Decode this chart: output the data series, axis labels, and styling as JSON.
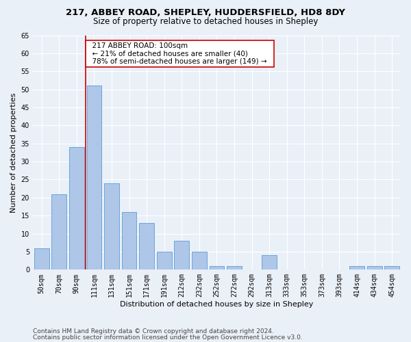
{
  "title1": "217, ABBEY ROAD, SHEPLEY, HUDDERSFIELD, HD8 8DY",
  "title2": "Size of property relative to detached houses in Shepley",
  "xlabel": "Distribution of detached houses by size in Shepley",
  "ylabel": "Number of detached properties",
  "categories": [
    "50sqm",
    "70sqm",
    "90sqm",
    "111sqm",
    "131sqm",
    "151sqm",
    "171sqm",
    "191sqm",
    "212sqm",
    "232sqm",
    "252sqm",
    "272sqm",
    "292sqm",
    "313sqm",
    "333sqm",
    "353sqm",
    "373sqm",
    "393sqm",
    "414sqm",
    "434sqm",
    "454sqm"
  ],
  "values": [
    6,
    21,
    34,
    51,
    24,
    16,
    13,
    5,
    8,
    5,
    1,
    1,
    0,
    4,
    0,
    0,
    0,
    0,
    1,
    1,
    1
  ],
  "bar_color": "#aec6e8",
  "bar_edge_color": "#5a9fd4",
  "property_line_label": "217 ABBEY ROAD: 100sqm",
  "annotation_line1": "← 21% of detached houses are smaller (40)",
  "annotation_line2": "78% of semi-detached houses are larger (149) →",
  "annotation_box_color": "#ffffff",
  "annotation_box_edge_color": "#cc0000",
  "vline_color": "#cc0000",
  "vline_x": 2.5,
  "ylim": [
    0,
    65
  ],
  "yticks": [
    0,
    5,
    10,
    15,
    20,
    25,
    30,
    35,
    40,
    45,
    50,
    55,
    60,
    65
  ],
  "footnote1": "Contains HM Land Registry data © Crown copyright and database right 2024.",
  "footnote2": "Contains public sector information licensed under the Open Government Licence v3.0.",
  "bg_color": "#eaf0f8",
  "plot_bg_color": "#eaf0f8",
  "grid_color": "#ffffff",
  "title_fontsize": 9.5,
  "subtitle_fontsize": 8.5,
  "axis_label_fontsize": 8,
  "tick_fontsize": 7,
  "annotation_fontsize": 7.5,
  "footnote_fontsize": 6.5
}
